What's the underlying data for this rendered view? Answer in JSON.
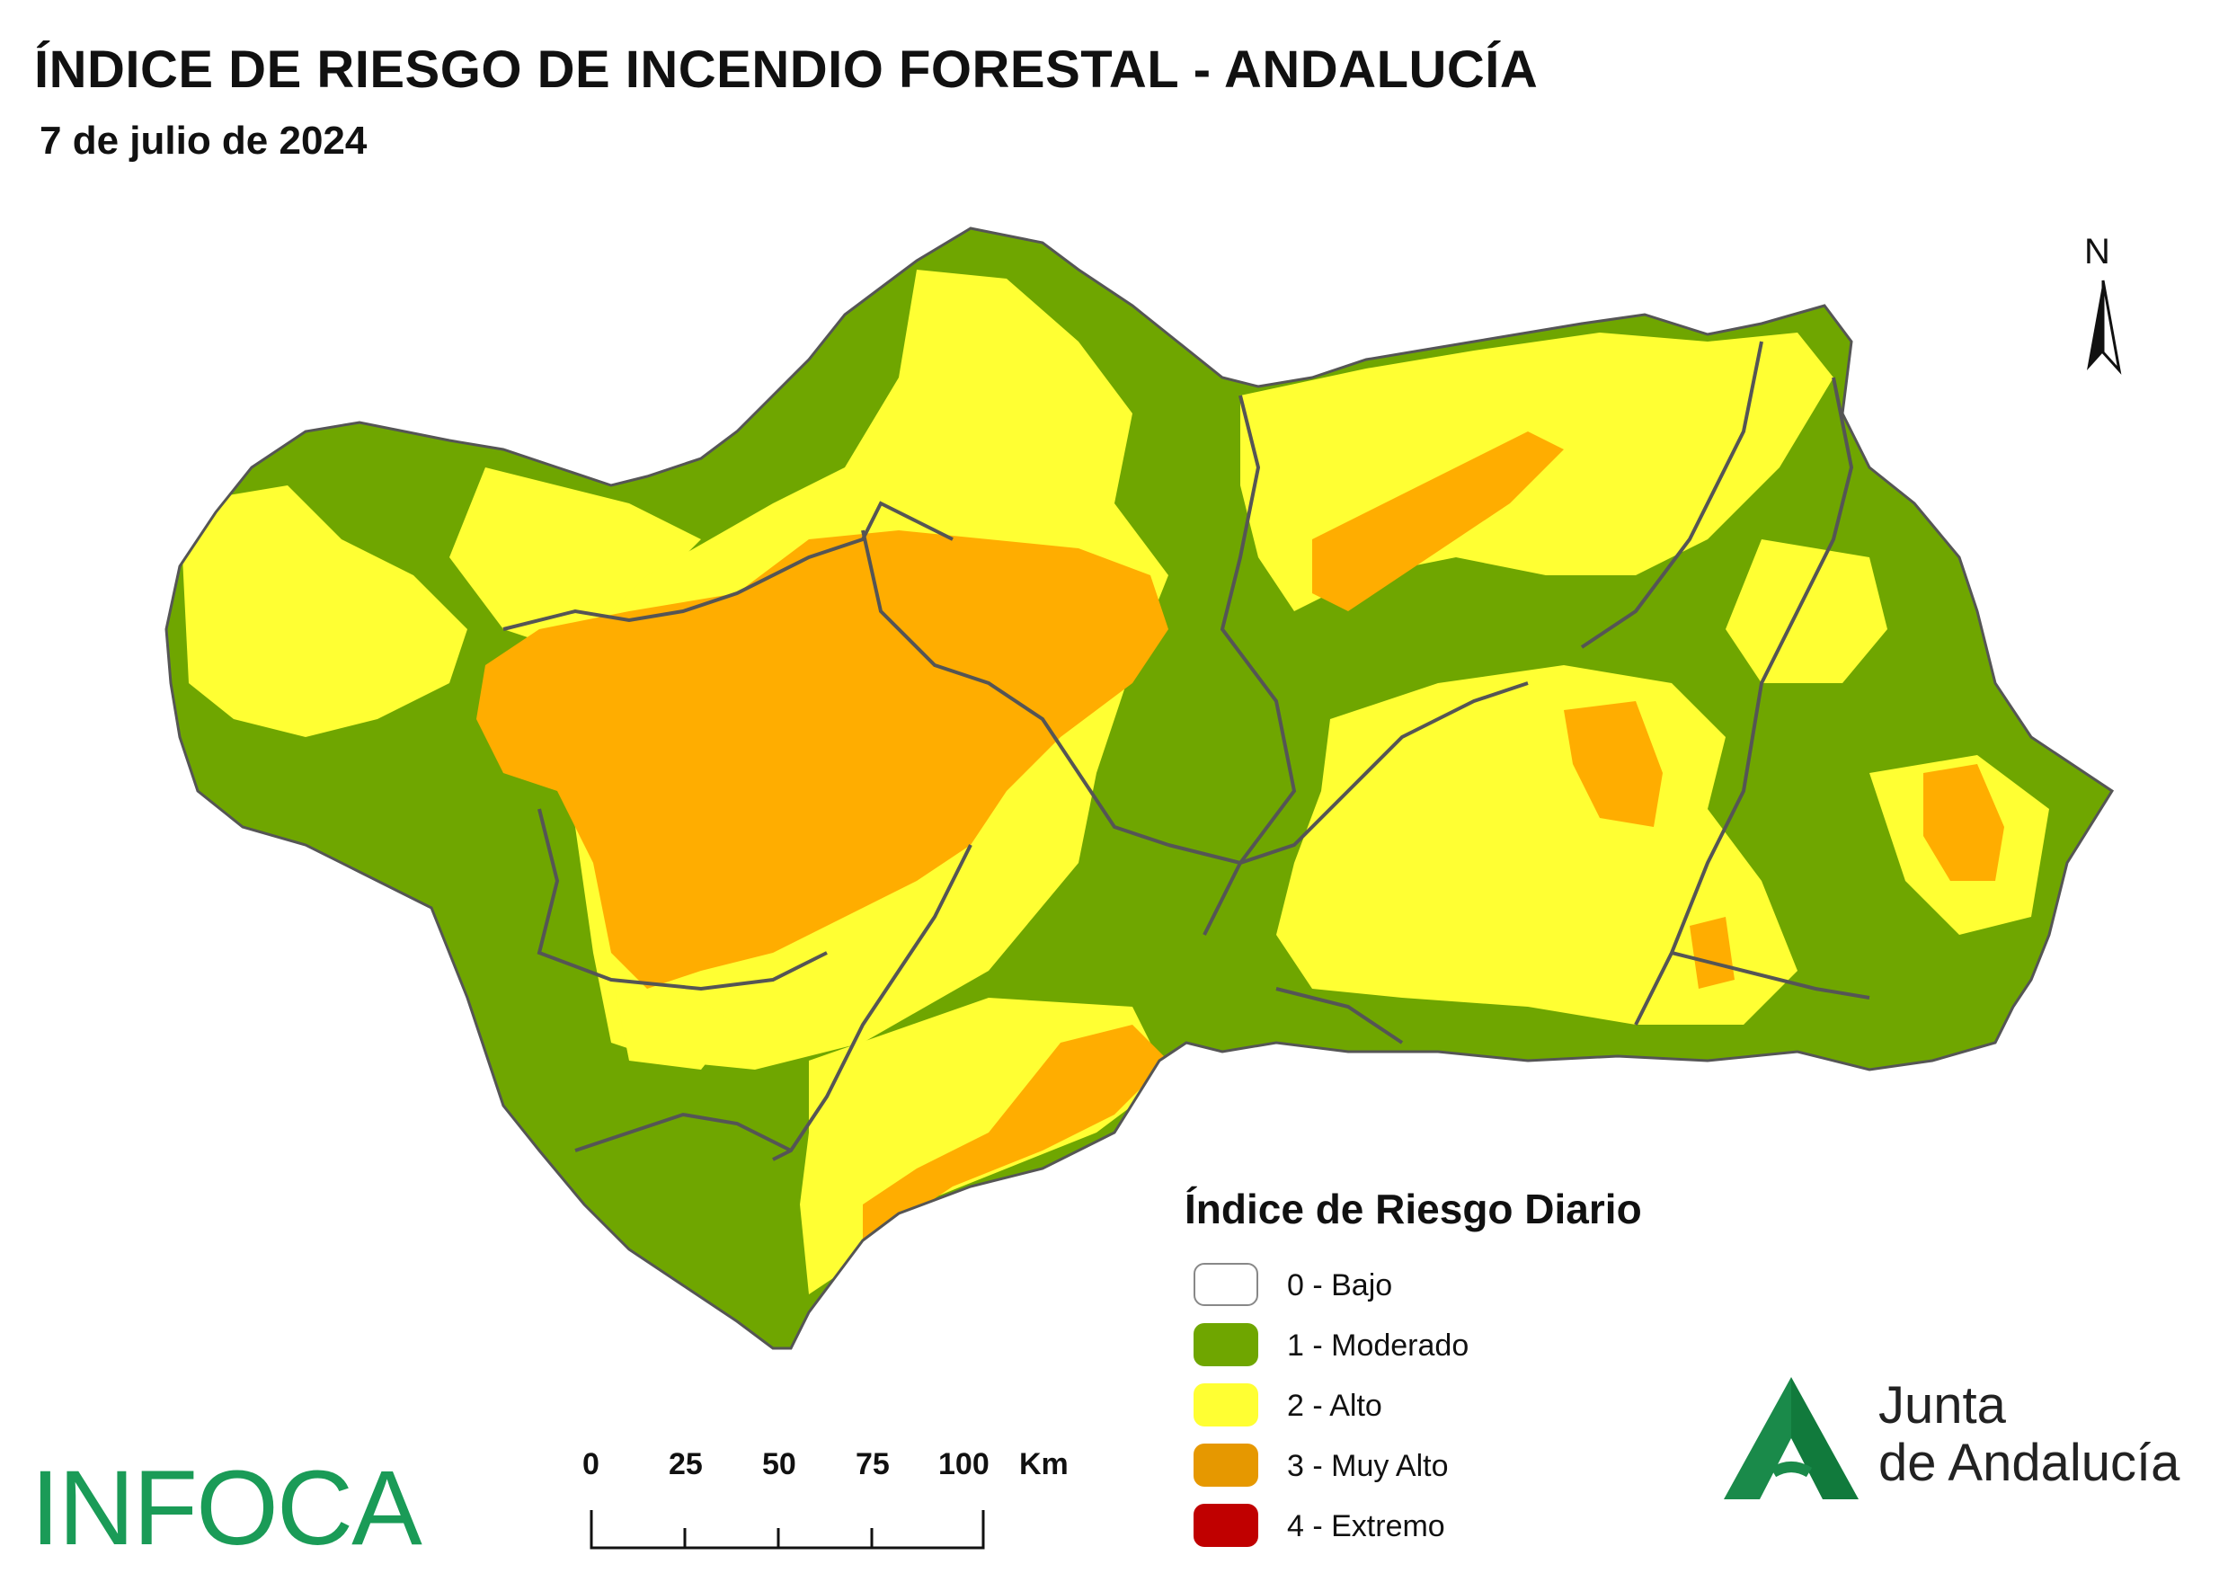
{
  "header": {
    "title": "ÍNDICE DE RIESGO DE INCENDIO FORESTAL - ANDALUCÍA",
    "date": "7 de julio de 2024"
  },
  "north_arrow": {
    "label": "N"
  },
  "legend": {
    "title": "Índice de Riesgo Diario",
    "items": [
      {
        "label": "0 - Bajo",
        "color": "#ffffff"
      },
      {
        "label": "1 - Moderado",
        "color": "#6fa600"
      },
      {
        "label": "2 - Alto",
        "color": "#ffff33"
      },
      {
        "label": "3 - Muy Alto",
        "color": "#e69800"
      },
      {
        "label": "4 - Extremo",
        "color": "#c00000"
      }
    ]
  },
  "scale_bar": {
    "ticks": [
      "0",
      "25",
      "50",
      "75",
      "100"
    ],
    "unit": "Km"
  },
  "logos": {
    "infoca": "INFOCA",
    "junta_line1": "Junta",
    "junta_line2": "de Andalucía",
    "junta_color": "#1a8a4a"
  },
  "map_colors": {
    "moderado": "#6fa600",
    "alto": "#ffff33",
    "muy_alto": "#ffad00",
    "border": "#555555"
  }
}
